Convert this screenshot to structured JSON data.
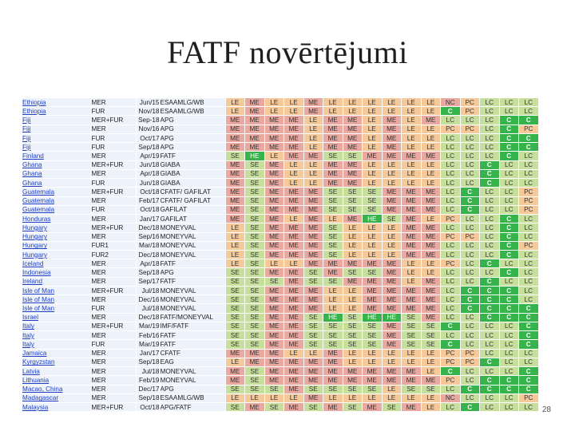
{
  "slide": {
    "title": "FATF novērtējumi",
    "page_number": "28"
  },
  "colors": {
    "LE": "#f5c99a",
    "ME": "#e9a8a0",
    "SE": "#c7df9c",
    "HE": "#36b34a",
    "NC": "#e9a8a0",
    "PC": "#f5c99a",
    "LC": "#c7df9c",
    "C": "#36b34a",
    "country_link": "#1f3fc4"
  },
  "table": {
    "rows": [
      {
        "country": "Ethiopia",
        "small": true,
        "type": "MER",
        "date": "Jun/15",
        "body": "ESAAMLG/WB",
        "ratings": [
          "LE",
          "ME",
          "LE",
          "LE",
          "ME",
          "LE",
          "LE",
          "LE",
          "LE",
          "LE",
          "LE",
          "NC",
          "PC",
          "LC",
          "LC",
          "LC"
        ]
      },
      {
        "country": "Ethiopia",
        "small": true,
        "type": "FUR",
        "date": "Nov/18",
        "body": "ESAAMLG/WB",
        "ratings": [
          "LE",
          "ME",
          "LE",
          "LE",
          "ME",
          "LE",
          "LE",
          "LE",
          "LE",
          "LE",
          "LE",
          "C",
          "PC",
          "LC",
          "LC",
          "LC"
        ]
      },
      {
        "country": "Fiji",
        "small": false,
        "type": "MER+FUR",
        "date": "Sep-18",
        "body": "APG",
        "ratings": [
          "ME",
          "ME",
          "ME",
          "ME",
          "LE",
          "ME",
          "ME",
          "LE",
          "ME",
          "LE",
          "ME",
          "LC",
          "LC",
          "LC",
          "C",
          "C"
        ]
      },
      {
        "country": "Fiji",
        "small": true,
        "type": "MER",
        "date": "Nov/16",
        "body": "APG",
        "ratings": [
          "ME",
          "ME",
          "ME",
          "ME",
          "LE",
          "ME",
          "ME",
          "LE",
          "ME",
          "LE",
          "LE",
          "PC",
          "PC",
          "LC",
          "C",
          "PC"
        ]
      },
      {
        "country": "Fiji",
        "small": true,
        "type": "FUR",
        "date": "Oct/17",
        "body": "APG",
        "ratings": [
          "ME",
          "ME",
          "ME",
          "ME",
          "LE",
          "ME",
          "ME",
          "LE",
          "ME",
          "LE",
          "LE",
          "LC",
          "LC",
          "LC",
          "C",
          "C"
        ]
      },
      {
        "country": "Fiji",
        "small": true,
        "type": "FUR",
        "date": "Sep/18",
        "body": "APG",
        "ratings": [
          "ME",
          "ME",
          "ME",
          "ME",
          "LE",
          "ME",
          "ME",
          "LE",
          "ME",
          "LE",
          "LE",
          "LC",
          "LC",
          "LC",
          "C",
          "C"
        ]
      },
      {
        "country": "Finland",
        "small": false,
        "type": "MER",
        "date": "Apr/19",
        "body": "FATF",
        "ratings": [
          "SE",
          "HE",
          "LE",
          "ME",
          "ME",
          "SE",
          "SE",
          "ME",
          "ME",
          "ME",
          "ME",
          "LC",
          "LC",
          "LC",
          "C",
          "LC"
        ]
      },
      {
        "country": "Ghana",
        "small": false,
        "type": "MER+FUR",
        "date": "Jun/18",
        "body": "GIABA",
        "ratings": [
          "ME",
          "SE",
          "ME",
          "LE",
          "LE",
          "ME",
          "ME",
          "LE",
          "LE",
          "LE",
          "LE",
          "LC",
          "LC",
          "C",
          "LC",
          "LC"
        ]
      },
      {
        "country": "Ghana",
        "small": false,
        "indent": true,
        "type": "MER",
        "date": "Apr/18",
        "body": "GIABA",
        "ratings": [
          "ME",
          "SE",
          "ME",
          "LE",
          "LE",
          "ME",
          "ME",
          "LE",
          "LE",
          "LE",
          "LE",
          "LC",
          "LC",
          "C",
          "LC",
          "LC"
        ]
      },
      {
        "country": "Ghana",
        "small": false,
        "indent": true,
        "type": "FUR",
        "date": "Jun/18",
        "body": "GIABA",
        "ratings": [
          "ME",
          "SE",
          "ME",
          "LE",
          "LE",
          "ME",
          "ME",
          "LE",
          "LE",
          "LE",
          "LE",
          "LC",
          "LC",
          "C",
          "LC",
          "LC"
        ]
      },
      {
        "country": "Guatemala",
        "small": false,
        "type": "MER+FUR",
        "date": "Oct/18",
        "body": "CFATF/ GAFILAT",
        "ratings": [
          "ME",
          "SE",
          "ME",
          "ME",
          "ME",
          "SE",
          "SE",
          "SE",
          "ME",
          "ME",
          "ME",
          "LC",
          "C",
          "LC",
          "LC",
          "PC"
        ]
      },
      {
        "country": "Guatemala",
        "small": true,
        "type": "MER",
        "date": "Feb/17",
        "body": "CFATF/ GAFILAT",
        "ratings": [
          "ME",
          "SE",
          "ME",
          "ME",
          "ME",
          "SE",
          "SE",
          "SE",
          "ME",
          "ME",
          "ME",
          "LC",
          "C",
          "LC",
          "LC",
          "PC"
        ]
      },
      {
        "country": "Guatemala",
        "small": true,
        "type": "FUR",
        "date": "Oct/18",
        "body": "GAFILAT",
        "ratings": [
          "ME",
          "SE",
          "ME",
          "ME",
          "ME",
          "SE",
          "SE",
          "SE",
          "ME",
          "ME",
          "ME",
          "LC",
          "C",
          "LC",
          "LC",
          "PC"
        ]
      },
      {
        "country": "Honduras",
        "small": false,
        "type": "MER",
        "date": "Jan/17",
        "body": "GAFILAT",
        "ratings": [
          "ME",
          "SE",
          "ME",
          "LE",
          "ME",
          "LE",
          "ME",
          "HE",
          "SE",
          "ME",
          "LE",
          "PC",
          "LC",
          "LC",
          "C",
          "LC"
        ]
      },
      {
        "country": "Hungary",
        "small": false,
        "type": "MER+FUR",
        "date": "Dec/18",
        "body": "MONEYVAL",
        "ratings": [
          "LE",
          "SE",
          "ME",
          "ME",
          "ME",
          "SE",
          "LE",
          "LE",
          "LE",
          "ME",
          "ME",
          "LC",
          "LC",
          "LC",
          "C",
          "LC"
        ]
      },
      {
        "country": "Hungary",
        "small": true,
        "type": "MER",
        "date": "Sep/16",
        "body": "MONEYVAL",
        "ratings": [
          "LE",
          "SE",
          "ME",
          "ME",
          "ME",
          "SE",
          "LE",
          "LE",
          "LE",
          "ME",
          "ME",
          "PC",
          "PC",
          "LC",
          "C",
          "LC"
        ]
      },
      {
        "country": "Hungary",
        "small": true,
        "type": "FUR1",
        "date": "Mar/18",
        "body": "MONEYVAL",
        "ratings": [
          "LE",
          "SE",
          "ME",
          "ME",
          "ME",
          "SE",
          "LE",
          "LE",
          "LE",
          "ME",
          "ME",
          "LC",
          "LC",
          "LC",
          "C",
          "PC"
        ]
      },
      {
        "country": "Hungary",
        "small": true,
        "type": "FUR2",
        "date": "Dec/18",
        "body": "MONEYVAL",
        "ratings": [
          "LE",
          "SE",
          "ME",
          "ME",
          "ME",
          "SE",
          "LE",
          "LE",
          "LE",
          "ME",
          "ME",
          "LC",
          "LC",
          "LC",
          "C",
          "LC"
        ]
      },
      {
        "country": "Iceland",
        "small": false,
        "type": "MER",
        "date": "Apr/18",
        "body": "FATF",
        "ratings": [
          "LE",
          "SE",
          "LE",
          "LE",
          "ME",
          "ME",
          "ME",
          "ME",
          "ME",
          "LE",
          "LE",
          "PC",
          "LC",
          "C",
          "LC",
          "LC"
        ]
      },
      {
        "country": "Indonesia",
        "small": false,
        "type": "MER",
        "date": "Sep/18",
        "body": "APG",
        "ratings": [
          "SE",
          "SE",
          "ME",
          "ME",
          "SE",
          "ME",
          "SE",
          "SE",
          "ME",
          "LE",
          "LE",
          "LC",
          "LC",
          "LC",
          "C",
          "LC"
        ]
      },
      {
        "country": "Ireland",
        "small": false,
        "type": "MER",
        "date": "Sep/17",
        "body": "FATF",
        "ratings": [
          "SE",
          "SE",
          "SE",
          "ME",
          "SE",
          "SE",
          "ME",
          "ME",
          "ME",
          "LE",
          "ME",
          "LC",
          "LC",
          "C",
          "LC",
          "LC"
        ]
      },
      {
        "country": "Isle of Man",
        "small": false,
        "type": "MER+FUR",
        "date": "Jul/18",
        "body": "MONEYVAL",
        "ratings": [
          "SE",
          "SE",
          "ME",
          "ME",
          "ME",
          "LE",
          "LE",
          "ME",
          "ME",
          "ME",
          "ME",
          "LC",
          "C",
          "C",
          "C",
          "LC"
        ]
      },
      {
        "country": "Isle of Man",
        "small": true,
        "type": "MER",
        "date": "Dec/16",
        "body": "MONEYVAL",
        "ratings": [
          "SE",
          "SE",
          "ME",
          "ME",
          "ME",
          "LE",
          "LE",
          "ME",
          "ME",
          "ME",
          "ME",
          "LC",
          "C",
          "C",
          "C",
          "LC"
        ]
      },
      {
        "country": "Isle of Man",
        "small": true,
        "type": "FUR",
        "date": "Jul/18",
        "body": "MONEYVAL",
        "ratings": [
          "SE",
          "SE",
          "ME",
          "ME",
          "ME",
          "LE",
          "LE",
          "ME",
          "ME",
          "ME",
          "ME",
          "LC",
          "C",
          "C",
          "C",
          "C"
        ]
      },
      {
        "country": "Israel",
        "small": false,
        "type": "MER",
        "date": "Dec/18",
        "body": "FATF/MONEYVAL",
        "ratings": [
          "SE",
          "SE",
          "ME",
          "ME",
          "SE",
          "HE",
          "SE",
          "HE",
          "HE",
          "SE",
          "ME",
          "LC",
          "LC",
          "C",
          "C",
          "C"
        ]
      },
      {
        "country": "Italy",
        "small": false,
        "type": "MER+FUR",
        "date": "Mar/19",
        "body": "IMF/FATF",
        "ratings": [
          "SE",
          "SE",
          "ME",
          "ME",
          "SE",
          "SE",
          "SE",
          "SE",
          "ME",
          "SE",
          "SE",
          "C",
          "LC",
          "LC",
          "LC",
          "C"
        ]
      },
      {
        "country": "Italy",
        "small": false,
        "indent": true,
        "type": "MER",
        "date": "Feb/16",
        "body": "FATF",
        "ratings": [
          "SE",
          "SE",
          "ME",
          "ME",
          "SE",
          "SE",
          "SE",
          "SE",
          "ME",
          "SE",
          "SE",
          "LC",
          "LC",
          "LC",
          "LC",
          "C"
        ]
      },
      {
        "country": "Italy",
        "small": false,
        "indent": true,
        "type": "FUR",
        "date": "Mar/19",
        "body": "FATF",
        "ratings": [
          "SE",
          "SE",
          "ME",
          "ME",
          "SE",
          "SE",
          "SE",
          "SE",
          "ME",
          "SE",
          "SE",
          "C",
          "LC",
          "LC",
          "LC",
          "C"
        ]
      },
      {
        "country": "Jamaica",
        "small": false,
        "type": "MER",
        "date": "Jan/17",
        "body": "CFATF",
        "ratings": [
          "ME",
          "ME",
          "ME",
          "LE",
          "LE",
          "ME",
          "LE",
          "LE",
          "LE",
          "LE",
          "LE",
          "PC",
          "PC",
          "LC",
          "LC",
          "LC"
        ]
      },
      {
        "country": "Kyrgyzstan",
        "small": false,
        "type": "MER",
        "date": "Sep/18",
        "body": "EAG",
        "ratings": [
          "LE",
          "ME",
          "ME",
          "ME",
          "ME",
          "ME",
          "LE",
          "LE",
          "LE",
          "LE",
          "LE",
          "PC",
          "PC",
          "C",
          "LC",
          "LC"
        ]
      },
      {
        "country": "Latvia",
        "small": false,
        "type": "MER",
        "date": "Jul/18",
        "body": "MONEYVAL",
        "ratings": [
          "ME",
          "SE",
          "ME",
          "ME",
          "ME",
          "ME",
          "ME",
          "ME",
          "ME",
          "ME",
          "LE",
          "C",
          "LC",
          "LC",
          "LC",
          "C"
        ]
      },
      {
        "country": "Lithuania",
        "small": false,
        "type": "MER",
        "date": "Feb/19",
        "body": "MONEYVAL",
        "ratings": [
          "ME",
          "SE",
          "ME",
          "ME",
          "ME",
          "ME",
          "ME",
          "ME",
          "ME",
          "ME",
          "ME",
          "PC",
          "LC",
          "C",
          "C",
          "C"
        ]
      },
      {
        "country": "Macao, China",
        "small": false,
        "type": "MER",
        "date": "Dec/17",
        "body": "APG",
        "ratings": [
          "SE",
          "SE",
          "SE",
          "ME",
          "SE",
          "SE",
          "SE",
          "SE",
          "LE",
          "SE",
          "SE",
          "LC",
          "C",
          "C",
          "C",
          "C"
        ]
      },
      {
        "country": "Madagascar",
        "small": false,
        "type": "MER",
        "date": "Sep/18",
        "body": "ESAAMLG/WB",
        "ratings": [
          "LE",
          "LE",
          "LE",
          "LE",
          "ME",
          "LE",
          "LE",
          "LE",
          "LE",
          "LE",
          "LE",
          "NC",
          "LC",
          "LC",
          "LC",
          "PC"
        ]
      },
      {
        "country": "Malaysia",
        "small": false,
        "type": "MER+FUR",
        "date": "Oct/18",
        "body": "APG/FATF",
        "ratings": [
          "SE",
          "ME",
          "SE",
          "ME",
          "SE",
          "ME",
          "SE",
          "ME",
          "SE",
          "ME",
          "LE",
          "LC",
          "C",
          "LC",
          "LC",
          "LC"
        ]
      }
    ]
  }
}
